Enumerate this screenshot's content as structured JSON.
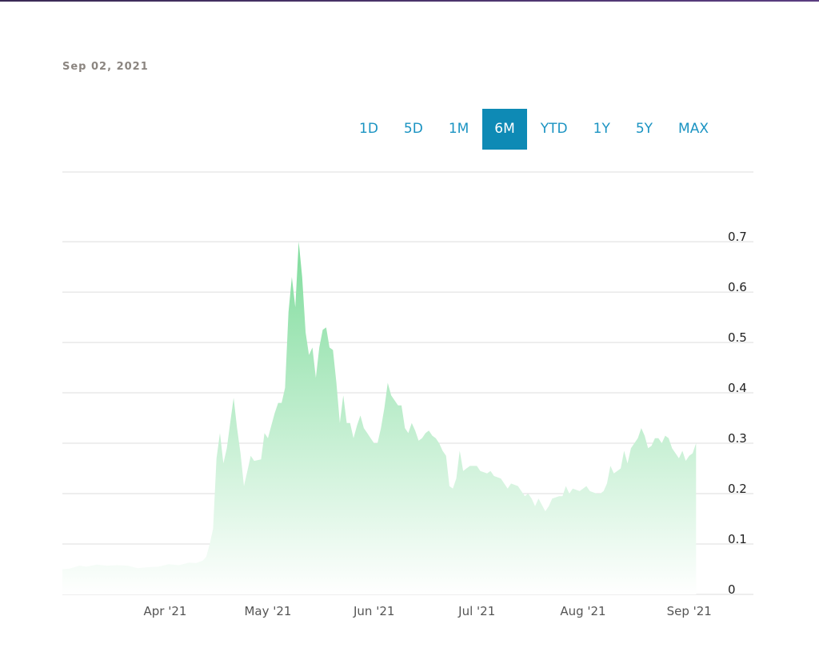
{
  "date_label": "Sep 02, 2021",
  "range_buttons": [
    {
      "label": "1D",
      "active": false
    },
    {
      "label": "5D",
      "active": false
    },
    {
      "label": "1M",
      "active": false
    },
    {
      "label": "6M",
      "active": true
    },
    {
      "label": "YTD",
      "active": false
    },
    {
      "label": "1Y",
      "active": false
    },
    {
      "label": "5Y",
      "active": false
    },
    {
      "label": "MAX",
      "active": false
    }
  ],
  "colors": {
    "area_top": "#7fdc9c",
    "area_bottom": "#ffffff",
    "accent": "#0e8ab5",
    "button_text": "#1a93c2",
    "grid": "#dddddd"
  },
  "chart_data": {
    "type": "area",
    "title": "",
    "xlabel": "",
    "ylabel": "",
    "ylim": [
      0,
      0.77
    ],
    "y_ticks": [
      "0",
      "0.1",
      "0.2",
      "0.3",
      "0.4",
      "0.5",
      "0.6",
      "0.7"
    ],
    "y_tick_values": [
      0,
      0.1,
      0.2,
      0.3,
      0.4,
      0.5,
      0.6,
      0.7
    ],
    "x_ticks": [
      {
        "label": "Apr '21",
        "date": "2021-04-01"
      },
      {
        "label": "May '21",
        "date": "2021-05-01"
      },
      {
        "label": "Jun '21",
        "date": "2021-06-01"
      },
      {
        "label": "Jul '21",
        "date": "2021-07-01"
      },
      {
        "label": "Aug '21",
        "date": "2021-08-01"
      },
      {
        "label": "Sep '21",
        "date": "2021-09-01"
      }
    ],
    "x_range": [
      "2021-03-02",
      "2021-09-02"
    ],
    "grid": true,
    "series": [
      {
        "points": [
          [
            "2021-03-02",
            0.05
          ],
          [
            "2021-03-04",
            0.051
          ],
          [
            "2021-03-07",
            0.057
          ],
          [
            "2021-03-09",
            0.055
          ],
          [
            "2021-03-12",
            0.059
          ],
          [
            "2021-03-15",
            0.057
          ],
          [
            "2021-03-18",
            0.058
          ],
          [
            "2021-03-21",
            0.057
          ],
          [
            "2021-03-24",
            0.052
          ],
          [
            "2021-03-27",
            0.054
          ],
          [
            "2021-03-30",
            0.055
          ],
          [
            "2021-04-02",
            0.06
          ],
          [
            "2021-04-05",
            0.058
          ],
          [
            "2021-04-08",
            0.063
          ],
          [
            "2021-04-10",
            0.062
          ],
          [
            "2021-04-12",
            0.067
          ],
          [
            "2021-04-13",
            0.075
          ],
          [
            "2021-04-14",
            0.1
          ],
          [
            "2021-04-15",
            0.13
          ],
          [
            "2021-04-16",
            0.27
          ],
          [
            "2021-04-17",
            0.32
          ],
          [
            "2021-04-18",
            0.26
          ],
          [
            "2021-04-19",
            0.29
          ],
          [
            "2021-04-20",
            0.34
          ],
          [
            "2021-04-21",
            0.39
          ],
          [
            "2021-04-22",
            0.33
          ],
          [
            "2021-04-23",
            0.28
          ],
          [
            "2021-04-24",
            0.215
          ],
          [
            "2021-04-25",
            0.245
          ],
          [
            "2021-04-26",
            0.275
          ],
          [
            "2021-04-27",
            0.265
          ],
          [
            "2021-04-29",
            0.268
          ],
          [
            "2021-04-30",
            0.32
          ],
          [
            "2021-05-01",
            0.31
          ],
          [
            "2021-05-02",
            0.335
          ],
          [
            "2021-05-03",
            0.36
          ],
          [
            "2021-05-04",
            0.38
          ],
          [
            "2021-05-05",
            0.38
          ],
          [
            "2021-05-06",
            0.41
          ],
          [
            "2021-05-07",
            0.56
          ],
          [
            "2021-05-08",
            0.63
          ],
          [
            "2021-05-09",
            0.57
          ],
          [
            "2021-05-10",
            0.7
          ],
          [
            "2021-05-11",
            0.63
          ],
          [
            "2021-05-12",
            0.52
          ],
          [
            "2021-05-13",
            0.475
          ],
          [
            "2021-05-14",
            0.49
          ],
          [
            "2021-05-15",
            0.43
          ],
          [
            "2021-05-16",
            0.49
          ],
          [
            "2021-05-17",
            0.525
          ],
          [
            "2021-05-18",
            0.53
          ],
          [
            "2021-05-19",
            0.49
          ],
          [
            "2021-05-20",
            0.485
          ],
          [
            "2021-05-21",
            0.42
          ],
          [
            "2021-05-22",
            0.34
          ],
          [
            "2021-05-23",
            0.395
          ],
          [
            "2021-05-24",
            0.34
          ],
          [
            "2021-05-25",
            0.34
          ],
          [
            "2021-05-26",
            0.31
          ],
          [
            "2021-05-27",
            0.335
          ],
          [
            "2021-05-28",
            0.355
          ],
          [
            "2021-05-29",
            0.33
          ],
          [
            "2021-05-30",
            0.32
          ],
          [
            "2021-05-31",
            0.31
          ],
          [
            "2021-06-01",
            0.3
          ],
          [
            "2021-06-02",
            0.3
          ],
          [
            "2021-06-03",
            0.33
          ],
          [
            "2021-06-04",
            0.37
          ],
          [
            "2021-06-05",
            0.42
          ],
          [
            "2021-06-06",
            0.395
          ],
          [
            "2021-06-07",
            0.385
          ],
          [
            "2021-06-08",
            0.375
          ],
          [
            "2021-06-09",
            0.375
          ],
          [
            "2021-06-10",
            0.33
          ],
          [
            "2021-06-11",
            0.32
          ],
          [
            "2021-06-12",
            0.34
          ],
          [
            "2021-06-13",
            0.325
          ],
          [
            "2021-06-14",
            0.305
          ],
          [
            "2021-06-15",
            0.31
          ],
          [
            "2021-06-16",
            0.32
          ],
          [
            "2021-06-17",
            0.325
          ],
          [
            "2021-06-18",
            0.315
          ],
          [
            "2021-06-19",
            0.31
          ],
          [
            "2021-06-20",
            0.3
          ],
          [
            "2021-06-21",
            0.285
          ],
          [
            "2021-06-22",
            0.275
          ],
          [
            "2021-06-23",
            0.215
          ],
          [
            "2021-06-24",
            0.21
          ],
          [
            "2021-06-25",
            0.23
          ],
          [
            "2021-06-26",
            0.285
          ],
          [
            "2021-06-27",
            0.245
          ],
          [
            "2021-06-28",
            0.25
          ],
          [
            "2021-06-29",
            0.255
          ],
          [
            "2021-07-01",
            0.255
          ],
          [
            "2021-07-02",
            0.245
          ],
          [
            "2021-07-04",
            0.24
          ],
          [
            "2021-07-05",
            0.245
          ],
          [
            "2021-07-06",
            0.235
          ],
          [
            "2021-07-08",
            0.23
          ],
          [
            "2021-07-10",
            0.21
          ],
          [
            "2021-07-11",
            0.22
          ],
          [
            "2021-07-13",
            0.215
          ],
          [
            "2021-07-15",
            0.195
          ],
          [
            "2021-07-16",
            0.2
          ],
          [
            "2021-07-17",
            0.19
          ],
          [
            "2021-07-18",
            0.175
          ],
          [
            "2021-07-19",
            0.19
          ],
          [
            "2021-07-21",
            0.165
          ],
          [
            "2021-07-22",
            0.175
          ],
          [
            "2021-07-23",
            0.19
          ],
          [
            "2021-07-25",
            0.195
          ],
          [
            "2021-07-26",
            0.195
          ],
          [
            "2021-07-27",
            0.215
          ],
          [
            "2021-07-28",
            0.2
          ],
          [
            "2021-07-29",
            0.21
          ],
          [
            "2021-07-31",
            0.205
          ],
          [
            "2021-08-02",
            0.215
          ],
          [
            "2021-08-03",
            0.205
          ],
          [
            "2021-08-05",
            0.2
          ],
          [
            "2021-08-06",
            0.2
          ],
          [
            "2021-08-07",
            0.205
          ],
          [
            "2021-08-08",
            0.22
          ],
          [
            "2021-08-09",
            0.255
          ],
          [
            "2021-08-10",
            0.24
          ],
          [
            "2021-08-11",
            0.245
          ],
          [
            "2021-08-12",
            0.25
          ],
          [
            "2021-08-13",
            0.285
          ],
          [
            "2021-08-14",
            0.26
          ],
          [
            "2021-08-15",
            0.29
          ],
          [
            "2021-08-17",
            0.31
          ],
          [
            "2021-08-18",
            0.33
          ],
          [
            "2021-08-19",
            0.315
          ],
          [
            "2021-08-20",
            0.29
          ],
          [
            "2021-08-21",
            0.295
          ],
          [
            "2021-08-22",
            0.31
          ],
          [
            "2021-08-23",
            0.31
          ],
          [
            "2021-08-24",
            0.3
          ],
          [
            "2021-08-25",
            0.315
          ],
          [
            "2021-08-26",
            0.31
          ],
          [
            "2021-08-27",
            0.29
          ],
          [
            "2021-08-28",
            0.28
          ],
          [
            "2021-08-29",
            0.27
          ],
          [
            "2021-08-30",
            0.285
          ],
          [
            "2021-08-31",
            0.265
          ],
          [
            "2021-09-01",
            0.275
          ],
          [
            "2021-09-02",
            0.28
          ],
          [
            "2021-09-03",
            0.3
          ]
        ]
      }
    ]
  }
}
